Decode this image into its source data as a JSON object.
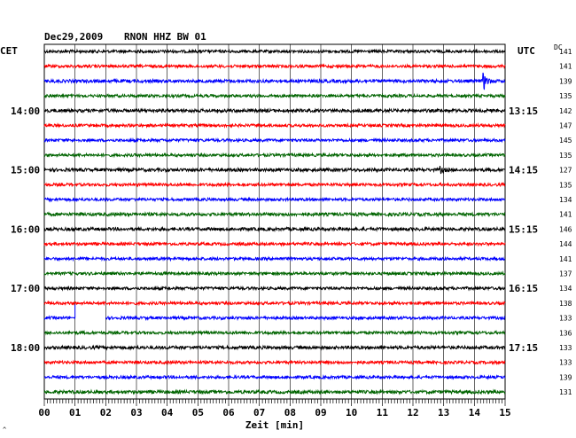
{
  "header": {
    "date": "Dec29,2009",
    "station": "RNON HHZ BW 01",
    "left_zone": "CET",
    "right_zone": "UTC",
    "dc_label": "DC"
  },
  "chart_data": {
    "type": "seismogram-helicorder",
    "xlabel": "Zeit [min]",
    "xlim": [
      0,
      15
    ],
    "x_ticks": [
      "00",
      "01",
      "02",
      "03",
      "04",
      "05",
      "06",
      "07",
      "08",
      "09",
      "10",
      "11",
      "12",
      "13",
      "14",
      "15"
    ],
    "grid": true,
    "left_hour_labels": [
      {
        "line": 4,
        "text": "14:00"
      },
      {
        "line": 8,
        "text": "15:00"
      },
      {
        "line": 12,
        "text": "16:00"
      },
      {
        "line": 16,
        "text": "17:00"
      },
      {
        "line": 20,
        "text": "18:00"
      }
    ],
    "right_hour_labels": [
      {
        "line": 4,
        "text": "13:15"
      },
      {
        "line": 8,
        "text": "14:15"
      },
      {
        "line": 12,
        "text": "15:15"
      },
      {
        "line": 16,
        "text": "16:15"
      },
      {
        "line": 20,
        "text": "17:15"
      }
    ],
    "trace_colors": [
      "#000000",
      "#ff0000",
      "#0000ff",
      "#006400"
    ],
    "dc_values": [
      "141",
      "141",
      "139",
      "135",
      "142",
      "147",
      "145",
      "135",
      "127",
      "135",
      "134",
      "141",
      "146",
      "144",
      "141",
      "137",
      "134",
      "138",
      "133",
      "136",
      "133",
      "133",
      "139",
      "131"
    ],
    "traces": [
      {
        "line": 0,
        "amp": 1.6
      },
      {
        "line": 1,
        "amp": 1.6
      },
      {
        "line": 2,
        "amp": 1.8,
        "event": {
          "minute": 14.3,
          "amp": 10
        }
      },
      {
        "line": 3,
        "amp": 1.6
      },
      {
        "line": 4,
        "amp": 1.8
      },
      {
        "line": 5,
        "amp": 1.6
      },
      {
        "line": 6,
        "amp": 1.6
      },
      {
        "line": 7,
        "amp": 1.6
      },
      {
        "line": 8,
        "amp": 1.8,
        "event": {
          "minute": 12.9,
          "amp": 3
        }
      },
      {
        "line": 9,
        "amp": 1.6
      },
      {
        "line": 10,
        "amp": 1.6
      },
      {
        "line": 11,
        "amp": 1.8
      },
      {
        "line": 12,
        "amp": 1.8
      },
      {
        "line": 13,
        "amp": 1.6
      },
      {
        "line": 14,
        "amp": 1.6
      },
      {
        "line": 15,
        "amp": 1.6
      },
      {
        "line": 16,
        "amp": 1.6
      },
      {
        "line": 17,
        "amp": 1.6
      },
      {
        "line": 18,
        "amp": 1.6,
        "gap": [
          1.0,
          2.0
        ]
      },
      {
        "line": 19,
        "amp": 1.6
      },
      {
        "line": 20,
        "amp": 1.8
      },
      {
        "line": 21,
        "amp": 1.6
      },
      {
        "line": 22,
        "amp": 1.6
      },
      {
        "line": 23,
        "amp": 1.8
      }
    ],
    "footer_mark": "^"
  }
}
